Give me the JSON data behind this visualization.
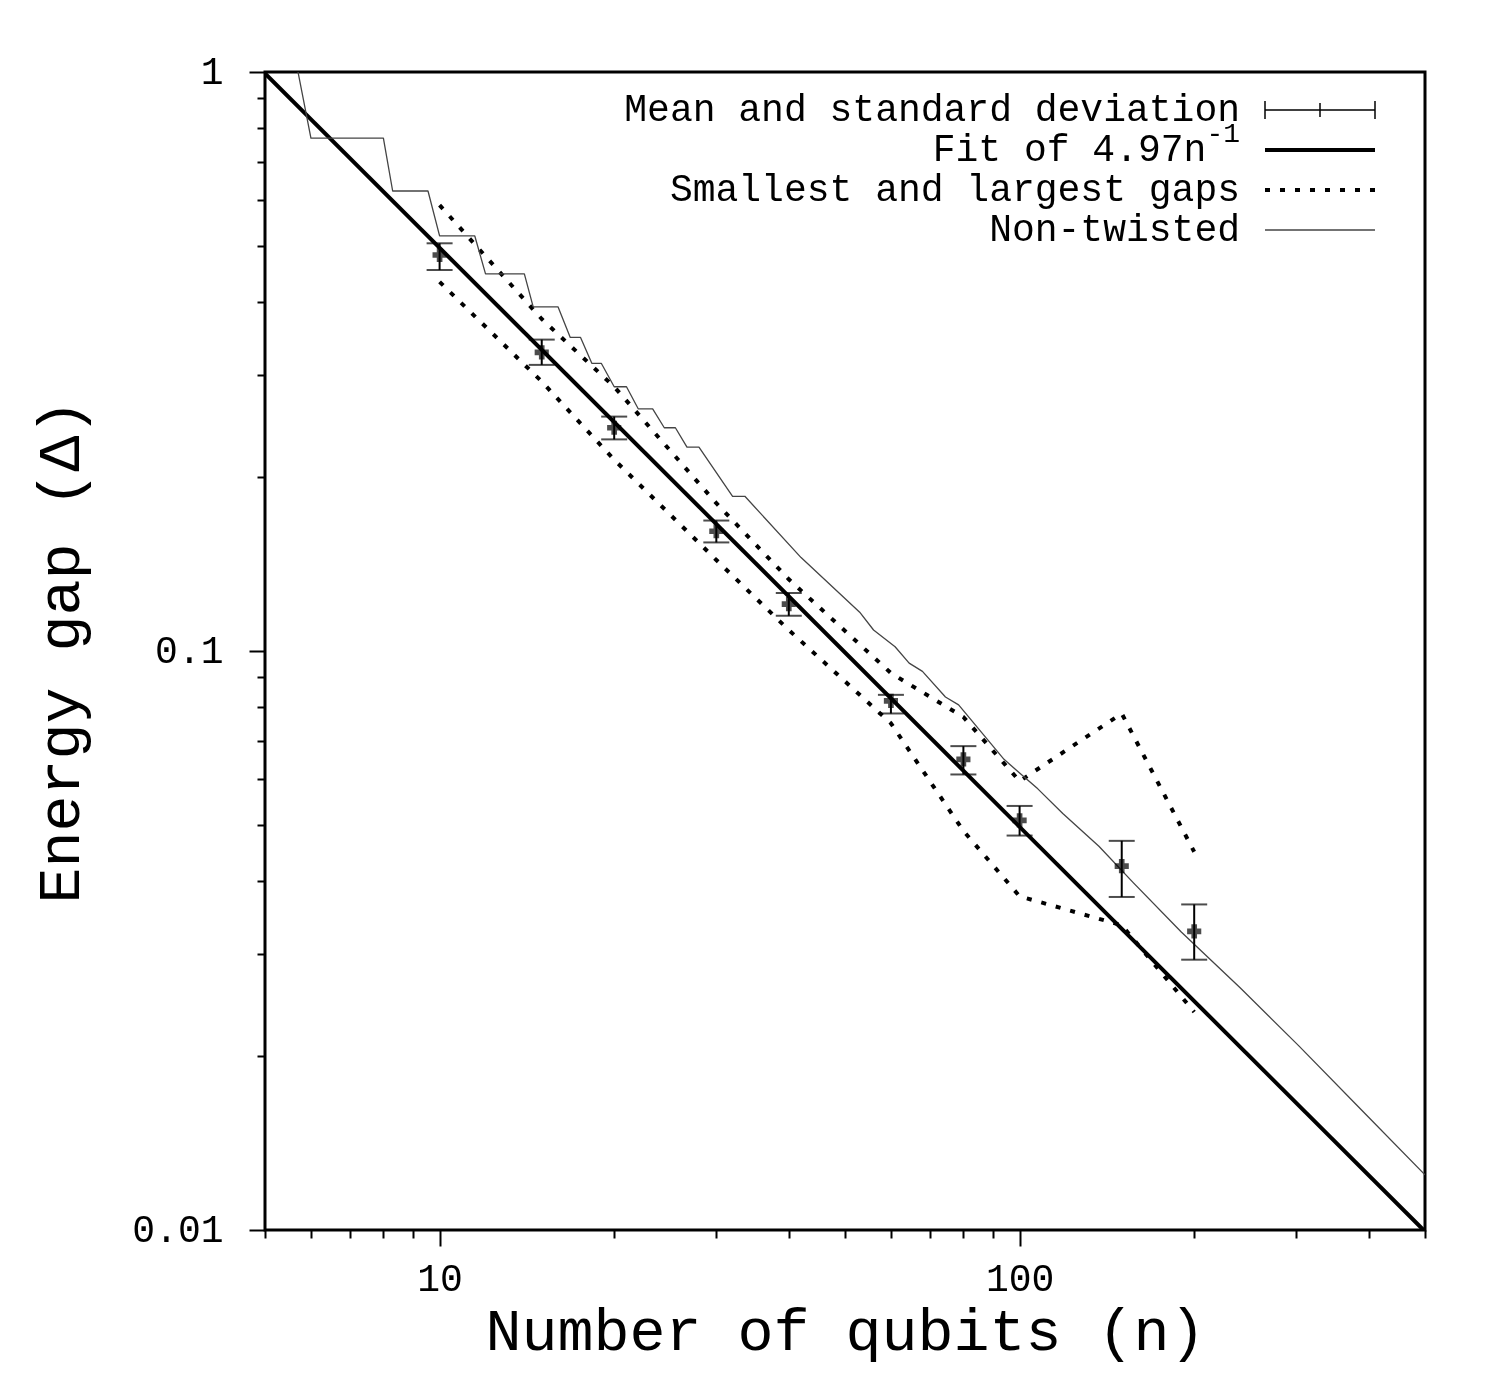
{
  "chart_data": {
    "type": "line",
    "xlabel": "Number of qubits (n)",
    "ylabel": "Energy gap (Δ)",
    "log": "xy",
    "grid": false,
    "legend": "top right",
    "xlim": [
      5,
      500
    ],
    "ylim": [
      0.01,
      1
    ],
    "xticks": [
      {
        "value": 5,
        "label": null
      },
      {
        "value": 6,
        "label": null
      },
      {
        "value": 7,
        "label": null
      },
      {
        "value": 8,
        "label": null
      },
      {
        "value": 9,
        "label": null
      },
      10,
      {
        "value": 20,
        "label": null
      },
      {
        "value": 30,
        "label": null
      },
      {
        "value": 40,
        "label": null
      },
      {
        "value": 50,
        "label": null
      },
      {
        "value": 60,
        "label": null
      },
      {
        "value": 70,
        "label": null
      },
      {
        "value": 80,
        "label": null
      },
      {
        "value": 90,
        "label": null
      },
      100,
      {
        "value": 200,
        "label": null
      },
      {
        "value": 300,
        "label": null
      },
      {
        "value": 400,
        "label": null
      },
      {
        "value": 500,
        "label": null
      }
    ],
    "yticks": [
      0.01,
      {
        "value": 0.02,
        "label": null
      },
      {
        "value": 0.03,
        "label": null
      },
      {
        "value": 0.04,
        "label": null
      },
      {
        "value": 0.05,
        "label": null
      },
      {
        "value": 0.06,
        "label": null
      },
      {
        "value": 0.07,
        "label": null
      },
      {
        "value": 0.08,
        "label": null
      },
      {
        "value": 0.09,
        "label": null
      },
      0.1,
      {
        "value": 0.2,
        "label": null
      },
      {
        "value": 0.3,
        "label": null
      },
      {
        "value": 0.4,
        "label": null
      },
      {
        "value": 0.5,
        "label": null
      },
      {
        "value": 0.6,
        "label": null
      },
      {
        "value": 0.7,
        "label": null
      },
      {
        "value": 0.8,
        "label": null
      },
      {
        "value": 0.9,
        "label": null
      },
      1
    ],
    "series": [
      {
        "name": "Mean and standard deviation",
        "type": "scatter",
        "marker": "cross",
        "color": "#000000",
        "x": [
          10,
          15,
          20,
          30,
          40,
          60,
          80,
          100,
          150,
          200
        ],
        "values": [
          0.483,
          0.328,
          0.243,
          0.161,
          0.1205,
          0.082,
          0.065,
          0.051,
          0.0425,
          0.0328
        ],
        "errors": [
          [
            0.455,
            0.506
          ],
          [
            0.312,
            0.345
          ],
          [
            0.232,
            0.254
          ],
          [
            0.154,
            0.168
          ],
          [
            0.115,
            0.126
          ],
          [
            0.078,
            0.084
          ],
          [
            0.0612,
            0.0685
          ],
          [
            0.048,
            0.054
          ],
          [
            0.0376,
            0.047
          ],
          [
            0.0293,
            0.0365
          ]
        ]
      },
      {
        "name": "Fit of 4.97n$^{-1}$",
        "line_style": "solid",
        "color": "#000000",
        "x": [
          5,
          497
        ],
        "values": [
          0.994,
          0.01
        ]
      },
      {
        "name": "Smallest and largest gaps",
        "line_style": "dotted",
        "color": "#000000",
        "x": [
          10,
          15,
          20,
          30,
          40,
          60,
          80,
          100,
          150,
          200
        ],
        "values": [
          0.589,
          0.3745,
          0.286,
          0.18,
          0.133,
          0.0916,
          0.0769,
          0.0596,
          0.078,
          0.045
        ]
      },
      {
        "line_style": "dotted",
        "color": "#000000",
        "x": [
          10,
          15,
          20,
          30,
          40,
          60,
          80,
          100,
          150,
          200
        ],
        "values": [
          0.434,
          0.292,
          0.214,
          0.1436,
          0.1087,
          0.075,
          0.0489,
          0.0377,
          0.0336,
          0.0238
        ]
      },
      {
        "name": "Non-twisted",
        "line_style": "solid",
        "color": "#444444",
        "x": [
          5.7,
          6,
          8,
          8.3,
          9.55,
          10,
          11.5,
          12,
          14,
          14.5,
          16,
          16.8,
          17.5,
          18.3,
          19,
          20,
          21,
          22,
          23.3,
          24.4,
          25.5,
          26.7,
          28,
          32,
          33.6,
          42,
          53,
          56,
          61,
          64.5,
          68,
          74.5,
          78.5,
          94,
          107.5,
          118.7,
          137,
          157,
          190,
          240,
          303,
          389,
          500
        ],
        "values": [
          1.0,
          0.769,
          0.769,
          0.623,
          0.623,
          0.521,
          0.521,
          0.448,
          0.448,
          0.393,
          0.393,
          0.348,
          0.348,
          0.314,
          0.314,
          0.286,
          0.286,
          0.262,
          0.262,
          0.243,
          0.243,
          0.225,
          0.225,
          0.185,
          0.185,
          0.145,
          0.1167,
          0.1087,
          0.1017,
          0.0953,
          0.0922,
          0.0833,
          0.0807,
          0.065,
          0.0578,
          0.0524,
          0.046,
          0.0398,
          0.0327,
          0.0262,
          0.0208,
          0.0161,
          0.01245
        ]
      }
    ]
  }
}
